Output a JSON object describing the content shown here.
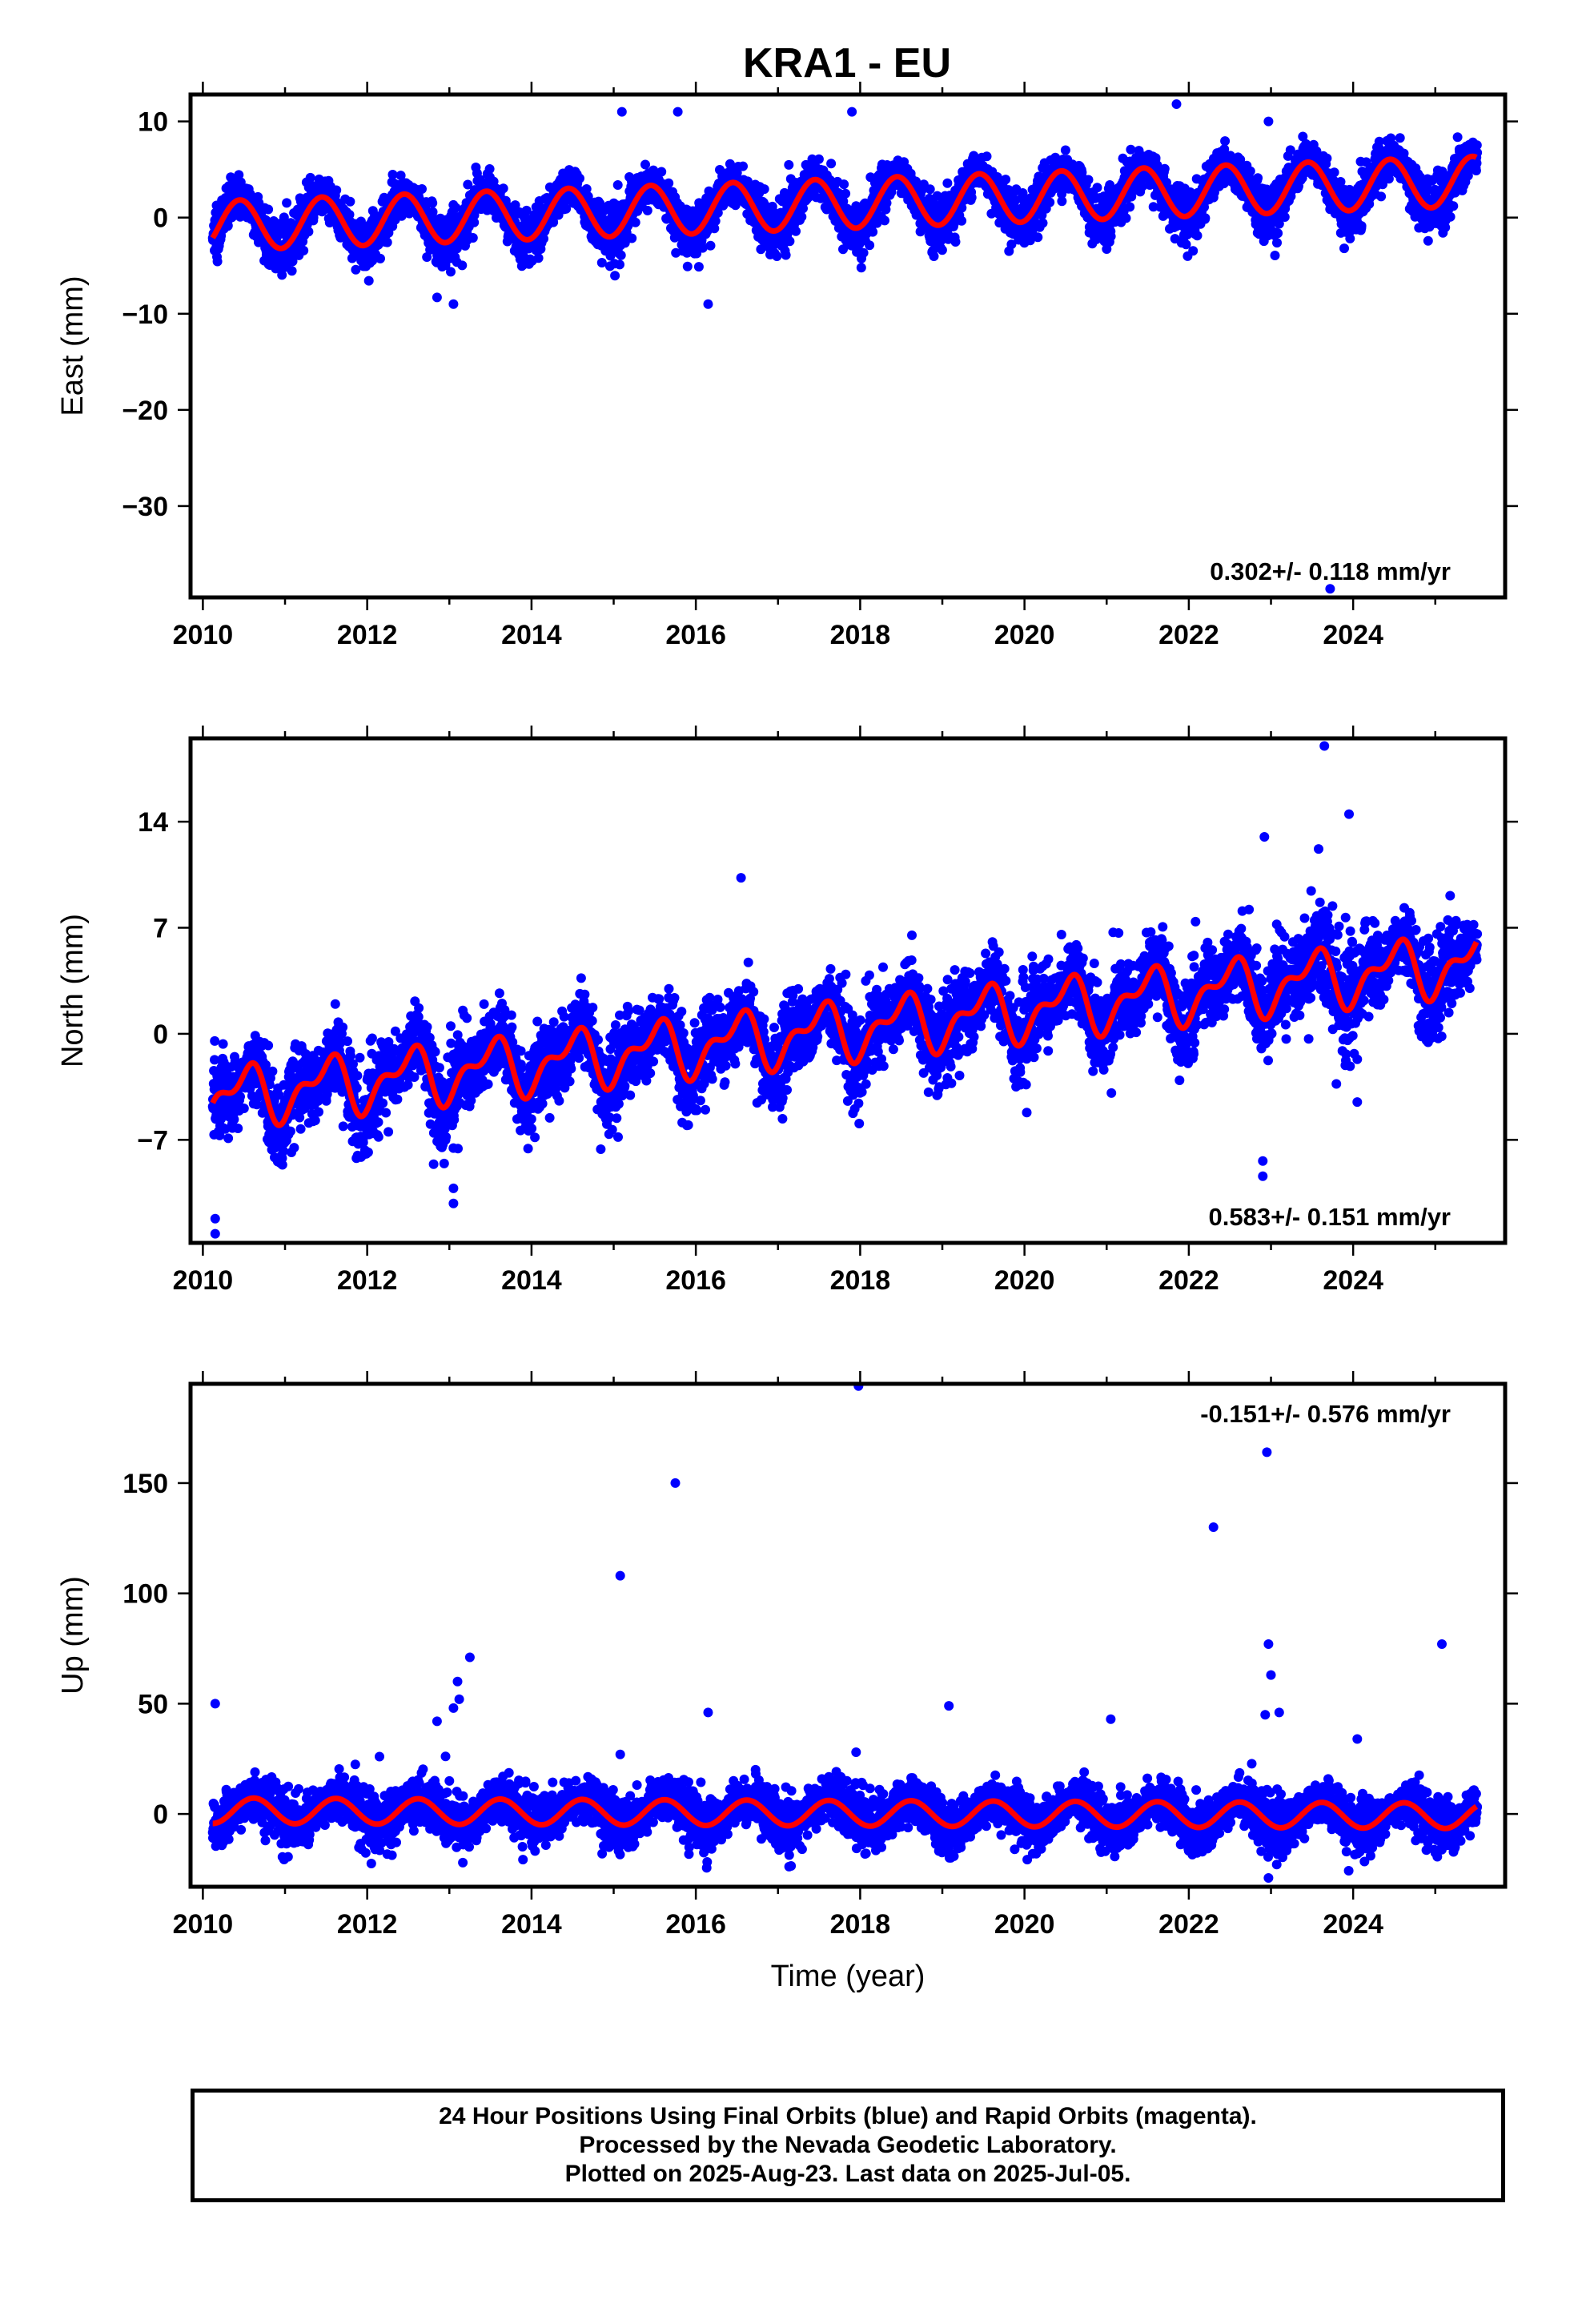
{
  "title": "KRA1 - EU",
  "footer": {
    "line1": "24 Hour Positions Using Final Orbits (blue) and Rapid Orbits (magenta).",
    "line2": "Processed by the Nevada Geodetic Laboratory.",
    "line3": "Plotted on 2025-Aug-23. Last data on 2025-Jul-05."
  },
  "chart_data": [
    {
      "type": "scatter",
      "panel": "east",
      "ylabel": "East (mm)",
      "xlim": [
        2009.85,
        2025.85
      ],
      "ylim": [
        -39.5,
        12.8
      ],
      "x_ticks": [
        2010,
        2012,
        2014,
        2016,
        2018,
        2020,
        2022,
        2024
      ],
      "y_ticks": [
        10,
        0,
        -10,
        -20,
        -30
      ],
      "rate_label": "0.302+/- 0.118 mm/yr",
      "rate_position": "bottom-right",
      "colors": {
        "points": "#0000ff",
        "model": "#ff0000"
      },
      "model": {
        "start": 2010.12,
        "end": 2025.5,
        "offset_at_2010": -0.9,
        "trend_mm_per_yr": 0.302,
        "annual_amplitude": 2.6,
        "annual_peak_year_fraction": 0.45,
        "scatter": 1.2
      },
      "data_first": 2010.12,
      "data_last": 2025.51,
      "outliers": [
        {
          "x": 2015.1,
          "y": 11.0
        },
        {
          "x": 2015.78,
          "y": 11.0
        },
        {
          "x": 2017.9,
          "y": 11.0
        },
        {
          "x": 2021.85,
          "y": 11.8
        },
        {
          "x": 2022.97,
          "y": 10.0
        },
        {
          "x": 2012.85,
          "y": -8.3
        },
        {
          "x": 2013.05,
          "y": -9.0
        },
        {
          "x": 2016.15,
          "y": -9.0
        },
        {
          "x": 2023.72,
          "y": -38.6
        }
      ]
    },
    {
      "type": "scatter",
      "panel": "north",
      "ylabel": "North (mm)",
      "xlim": [
        2009.85,
        2025.85
      ],
      "ylim": [
        -13.8,
        19.5
      ],
      "x_ticks": [
        2010,
        2012,
        2014,
        2016,
        2018,
        2020,
        2022,
        2024
      ],
      "y_ticks": [
        14,
        7,
        0,
        -7
      ],
      "rate_label": "0.583+/- 0.151 mm/yr",
      "rate_position": "bottom-right",
      "colors": {
        "points": "#0000ff",
        "model": "#ff0000"
      },
      "model": {
        "start": 2010.12,
        "end": 2025.5,
        "offset_at_2010": -4.3,
        "trend_mm_per_yr": 0.583,
        "annual_amplitude": 1.6,
        "annual_peak_year_fraction": 0.5,
        "semiannual_amplitude": 0.9,
        "scatter": 1.3
      },
      "data_first": 2010.12,
      "data_last": 2025.51,
      "outliers": [
        {
          "x": 2016.55,
          "y": 10.3
        },
        {
          "x": 2023.65,
          "y": 19.0
        },
        {
          "x": 2023.95,
          "y": 14.5
        },
        {
          "x": 2022.92,
          "y": 13.0
        },
        {
          "x": 2023.58,
          "y": 12.2
        },
        {
          "x": 2010.15,
          "y": -12.2
        },
        {
          "x": 2010.15,
          "y": -13.2
        },
        {
          "x": 2013.05,
          "y": -11.2
        },
        {
          "x": 2013.05,
          "y": -10.2
        },
        {
          "x": 2022.9,
          "y": -9.4
        },
        {
          "x": 2022.9,
          "y": -8.4
        },
        {
          "x": 2024.05,
          "y": -4.5
        }
      ]
    },
    {
      "type": "scatter",
      "panel": "up",
      "ylabel": "Up (mm)",
      "xlabel": "Time (year)",
      "xlim": [
        2009.85,
        2025.85
      ],
      "ylim": [
        -33,
        195
      ],
      "x_ticks": [
        2010,
        2012,
        2014,
        2016,
        2018,
        2020,
        2022,
        2024
      ],
      "y_ticks": [
        150,
        100,
        50,
        0
      ],
      "rate_label": "-0.151+/- 0.576 mm/yr",
      "rate_position": "top-right",
      "colors": {
        "points": "#0000ff",
        "model": "#ff0000"
      },
      "model": {
        "start": 2010.12,
        "end": 2025.5,
        "offset_at_2010": 1.5,
        "trend_mm_per_yr": -0.151,
        "annual_amplitude": 5.8,
        "annual_peak_year_fraction": 0.62,
        "scatter": 5.5
      },
      "data_first": 2010.12,
      "data_last": 2025.51,
      "outliers": [
        {
          "x": 2017.98,
          "y": 194
        },
        {
          "x": 2015.75,
          "y": 150
        },
        {
          "x": 2022.95,
          "y": 164
        },
        {
          "x": 2022.3,
          "y": 130
        },
        {
          "x": 2015.08,
          "y": 108
        },
        {
          "x": 2025.08,
          "y": 77
        },
        {
          "x": 2022.97,
          "y": 77
        },
        {
          "x": 2013.25,
          "y": 71
        },
        {
          "x": 2023.0,
          "y": 63
        },
        {
          "x": 2013.1,
          "y": 60
        },
        {
          "x": 2013.12,
          "y": 52
        },
        {
          "x": 2013.05,
          "y": 48
        },
        {
          "x": 2010.15,
          "y": 50
        },
        {
          "x": 2019.08,
          "y": 49
        },
        {
          "x": 2016.15,
          "y": 46
        },
        {
          "x": 2023.1,
          "y": 46
        },
        {
          "x": 2022.93,
          "y": 45
        },
        {
          "x": 2021.05,
          "y": 43
        },
        {
          "x": 2012.85,
          "y": 42
        },
        {
          "x": 2024.05,
          "y": 34
        },
        {
          "x": 2015.08,
          "y": 27
        },
        {
          "x": 2017.95,
          "y": 28
        },
        {
          "x": 2012.15,
          "y": 26
        },
        {
          "x": 2022.97,
          "y": -29
        }
      ]
    }
  ]
}
